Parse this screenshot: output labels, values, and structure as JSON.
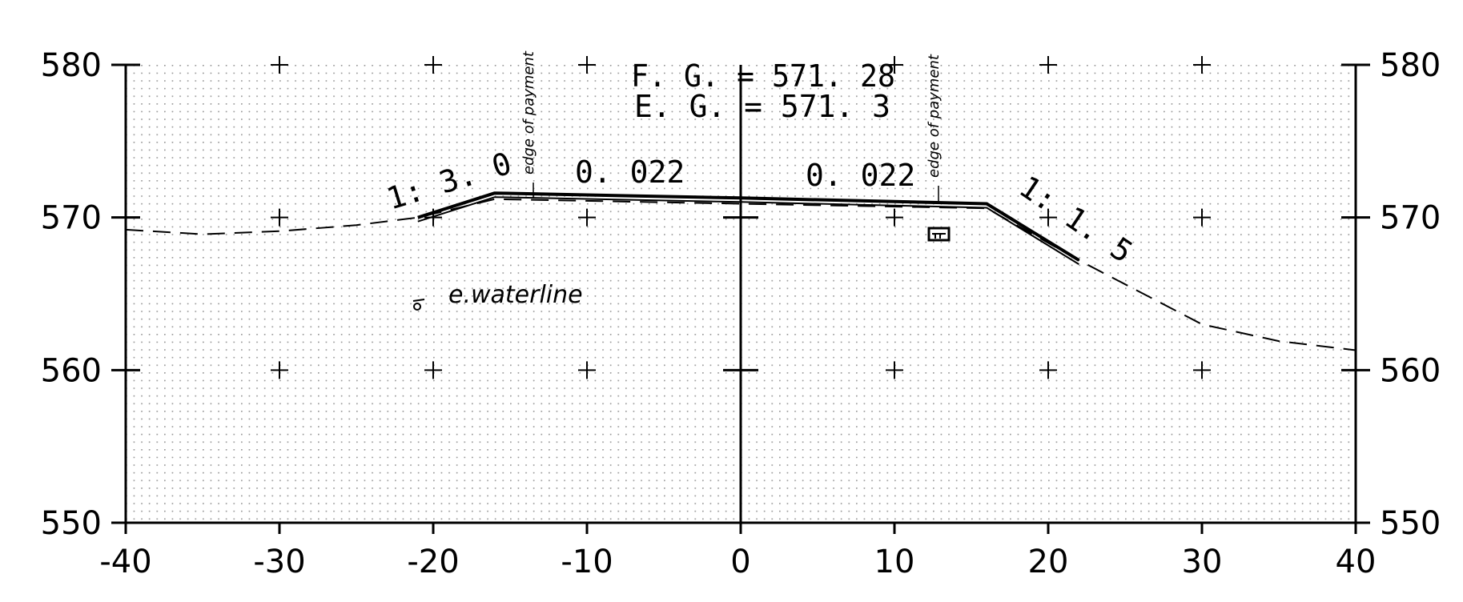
{
  "chart_data": {
    "type": "line",
    "xlim": [
      -40,
      40
    ],
    "ylim": [
      550,
      580
    ],
    "x_ticks": [
      "-40",
      "-30",
      "-20",
      "-10",
      "0",
      "10",
      "20",
      "30",
      "40"
    ],
    "y_ticks": [
      "550",
      "560",
      "570",
      "580"
    ],
    "grid": "dotted",
    "series": [
      {
        "style": "dashed",
        "x": [
          -40,
          -35,
          -30,
          -25,
          -21,
          -16,
          16,
          22,
          30,
          35,
          40
        ],
        "y": [
          569.2,
          568.9,
          569.1,
          569.5,
          570,
          571.2,
          570.6,
          567.2,
          563,
          561.9,
          561.3
        ]
      },
      {
        "style": "solid",
        "x": [
          -21,
          -16,
          0,
          16,
          22
        ],
        "y": [
          570,
          571.6,
          571.28,
          570.9,
          567.2
        ]
      }
    ]
  },
  "labels": {
    "fg": "F. G.  = 571. 28",
    "eg": "E. G.  = 571. 3",
    "slope_left": "1: 3. 0",
    "slope_right": "1: 1. 5",
    "cross_left": "0. 022",
    "cross_right": "0. 022",
    "edge_left": "edge of payment",
    "edge_right": "edge of payment",
    "waterline": "e.waterline"
  },
  "symbols": {
    "waterline": "small-circle-icon",
    "structure": "box-icon"
  }
}
